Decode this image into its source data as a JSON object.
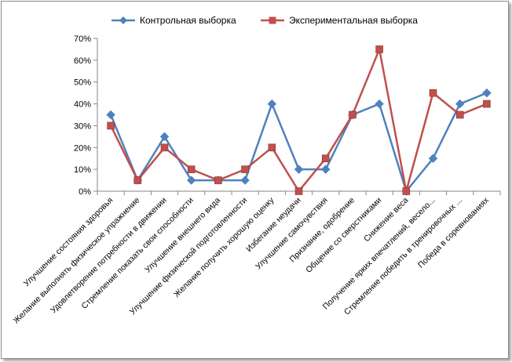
{
  "chart_data": {
    "type": "line",
    "categories": [
      "Улучшение состояния здоровья",
      "Желание выполнять физическое упражнение",
      "Удовлетворение потребности в движении",
      "Стремление показать свои способности",
      "Улучшение внешнего вида",
      "Улучшение физической подготовленности",
      "Желание получить хорошую оценку",
      "Избегание неудачи",
      "Улучшение самочувствия",
      "Признание, одобрение",
      "Общение со сверстниками",
      "Снижение веса",
      "Получение ярких впечатлений, весело...",
      "Стремление победить в тренировочных ...",
      "Победа в соревнованиях"
    ],
    "series": [
      {
        "name": "Контрольная выборка",
        "color": "#4f81bd",
        "marker": "diamond",
        "values": [
          35,
          5,
          25,
          5,
          5,
          5,
          40,
          10,
          10,
          35,
          40,
          0,
          15,
          40,
          45
        ]
      },
      {
        "name": "Экспериментальная выборка",
        "color": "#c0504d",
        "marker": "square",
        "values": [
          30,
          5,
          20,
          10,
          5,
          10,
          20,
          0,
          15,
          35,
          65,
          0,
          45,
          35,
          40
        ]
      }
    ],
    "y_ticks": [
      "0%",
      "10%",
      "20%",
      "30%",
      "40%",
      "50%",
      "60%",
      "70%"
    ],
    "ylim": [
      0,
      70
    ],
    "legend_position": "top",
    "grid": false
  }
}
